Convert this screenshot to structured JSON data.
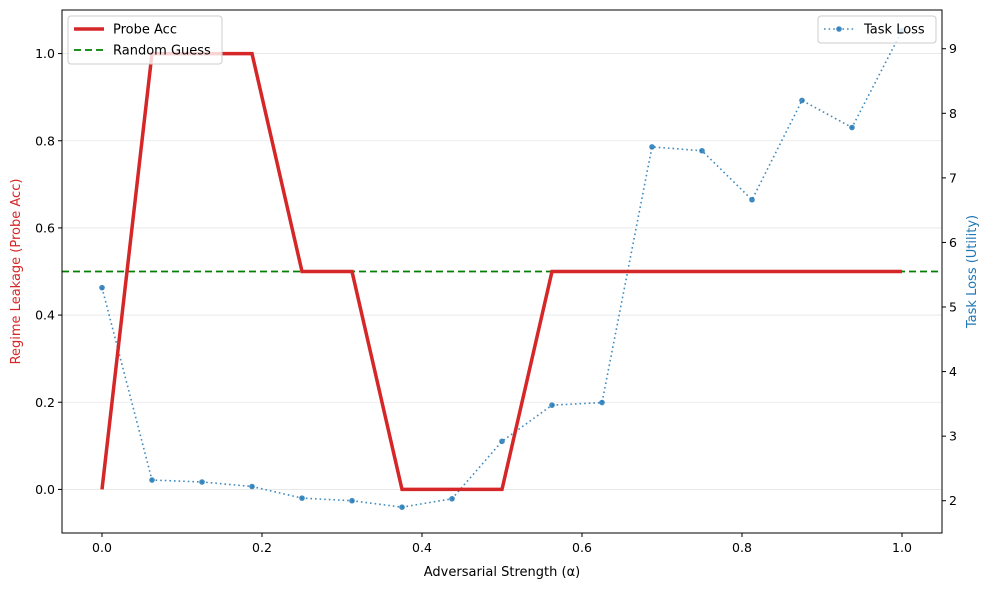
{
  "chart_data": {
    "type": "line",
    "xlabel": "Adversarial Strength (α)",
    "ylabel_left": "Regime Leakage (Probe Acc)",
    "ylabel_right": "Task Loss (Utility)",
    "xlim": [
      -0.05,
      1.05
    ],
    "ylim_left": [
      -0.1,
      1.1
    ],
    "ylim_right": [
      1.5,
      9.6
    ],
    "x_ticks": [
      "0.0",
      "0.2",
      "0.4",
      "0.6",
      "0.8",
      "1.0"
    ],
    "y_left_ticks": [
      "0.0",
      "0.2",
      "0.4",
      "0.6",
      "0.8",
      "1.0"
    ],
    "y_right_ticks": [
      "2",
      "3",
      "4",
      "5",
      "6",
      "7",
      "8",
      "9"
    ],
    "grid": "horizontal-light",
    "colors": {
      "probe": "#d62728",
      "random": "#008000",
      "task": "#1f77b4",
      "left_label": "#d62728",
      "right_label": "#1f77b4"
    },
    "series": [
      {
        "name": "Probe Acc",
        "axis": "left",
        "style": "solid-thick",
        "x": [
          0.0,
          0.0625,
          0.125,
          0.1875,
          0.25,
          0.3125,
          0.375,
          0.4375,
          0.5,
          0.5625,
          0.625,
          0.6875,
          0.75,
          0.8125,
          0.875,
          0.9375,
          1.0
        ],
        "y": [
          0.0,
          1.0,
          1.0,
          1.0,
          0.5,
          0.5,
          0.0,
          0.0,
          0.0,
          0.5,
          0.5,
          0.5,
          0.5,
          0.5,
          0.5,
          0.5,
          0.5
        ]
      },
      {
        "name": "Random Guess",
        "axis": "left",
        "style": "dashed-hline",
        "y": 0.5
      },
      {
        "name": "Task Loss",
        "axis": "right",
        "style": "dotted-markers",
        "x": [
          0.0,
          0.0625,
          0.125,
          0.1875,
          0.25,
          0.3125,
          0.375,
          0.4375,
          0.5,
          0.5625,
          0.625,
          0.6875,
          0.75,
          0.8125,
          0.875,
          0.9375,
          1.0
        ],
        "y": [
          5.3,
          2.32,
          2.29,
          2.22,
          2.04,
          2.0,
          1.9,
          2.03,
          2.92,
          3.48,
          3.52,
          7.48,
          7.42,
          6.66,
          8.2,
          7.78,
          9.28
        ]
      }
    ],
    "legend_left": [
      "Probe Acc",
      "Random Guess"
    ],
    "legend_right": [
      "Task Loss"
    ],
    "legend_left_placement": "top-left",
    "legend_right_placement": "top-right"
  }
}
